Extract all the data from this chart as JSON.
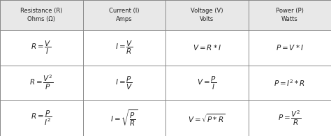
{
  "headers": [
    "Resistance (R)\nOhms (Ω)",
    "Current (I)\nAmps",
    "Voltage (V)\nVolts",
    "Power (P)\nWatts"
  ],
  "rows": [
    [
      "$R = \\dfrac{V}{I}$",
      "$I = \\dfrac{V}{R}$",
      "$V = R * I$",
      "$P = V * I$"
    ],
    [
      "$R = \\dfrac{V^2}{P}$",
      "$I = \\dfrac{P}{V}$",
      "$V = \\dfrac{P}{I}$",
      "$P = I^2 * R$"
    ],
    [
      "$R = \\dfrac{P}{I^2}$",
      "$I = \\sqrt{\\dfrac{P}{R}}$",
      "$V = \\sqrt{P * R}$",
      "$P = \\dfrac{V^2}{R}$"
    ]
  ],
  "bg_color": "#ffffff",
  "header_bg": "#e8e8e8",
  "cell_bg": "#ffffff",
  "border_color": "#888888",
  "text_color": "#222222",
  "figsize": [
    4.74,
    1.95
  ],
  "dpi": 100
}
